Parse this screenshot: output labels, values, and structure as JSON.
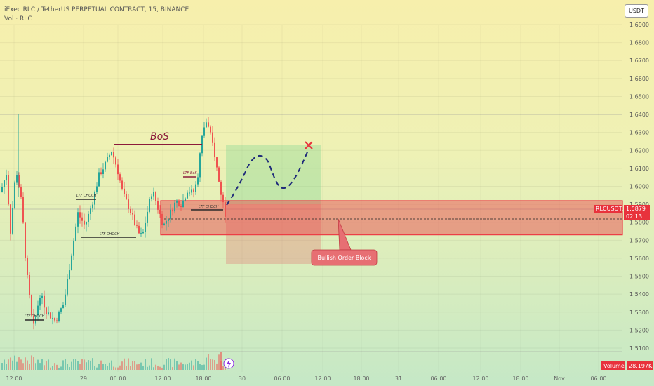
{
  "header": {
    "symbol_line": "iExec RLC / TetherUS PERPETUAL CONTRACT, 15, BINANCE",
    "volume_line": "Vol · RLC"
  },
  "currency_button": "USDT",
  "price_tag": {
    "symbol": "RLCUSDT.P",
    "price": "1.5879",
    "countdown": "02:13",
    "color": "#e8323c"
  },
  "volume_tag": {
    "label": "Volume",
    "value": "28.197K"
  },
  "colors": {
    "up": "#26a69a",
    "down": "#ef5350",
    "zone": "#ec3b45"
  },
  "chart_data": {
    "type": "candlestick",
    "y_ticks": [
      "1.6900",
      "1.6800",
      "1.6700",
      "1.6600",
      "1.6500",
      "1.6400",
      "1.6300",
      "1.6200",
      "1.6100",
      "1.6000",
      "1.5900",
      "1.5800",
      "1.5700",
      "1.5600",
      "1.5500",
      "1.5400",
      "1.5300",
      "1.5200",
      "1.5100"
    ],
    "x_ticks": [
      "12:00",
      "29",
      "06:00",
      "12:00",
      "18:00",
      "30",
      "06:00",
      "12:00",
      "18:00",
      "31",
      "06:00",
      "12:00",
      "18:00",
      "Nov",
      "06:00"
    ],
    "annotations": {
      "bos": "BoS",
      "ltf_choch": "LTF CHOCH",
      "ltf_bos": "LTF BoS",
      "order_block": "Bullish Order Block"
    },
    "order_block": {
      "top": 1.592,
      "bottom": 1.573
    },
    "current_price": 1.5879
  }
}
